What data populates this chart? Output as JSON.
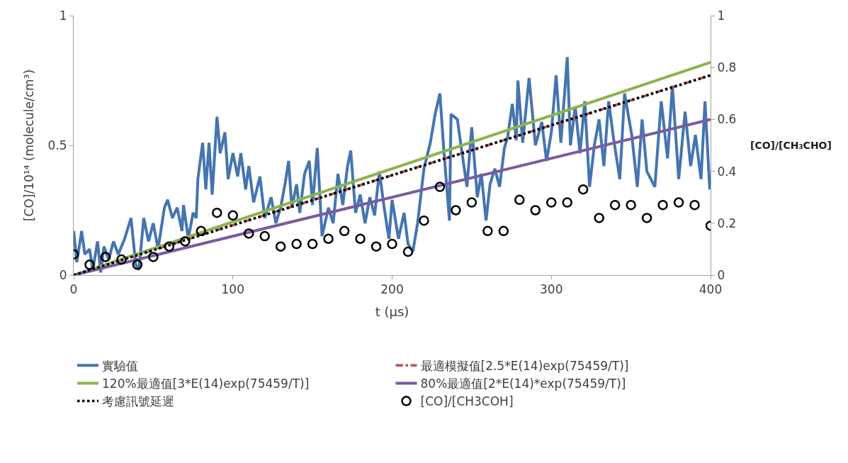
{
  "chart_data": {
    "type": "line",
    "xlabel": "t (μs)",
    "ylabel": "[CO]/10¹⁴ (molecule/cm³)",
    "y2label": "[CO]/[CH₃CHO]",
    "xlim": [
      0,
      400
    ],
    "xticks": [
      0,
      100,
      200,
      300,
      400
    ],
    "ylim": [
      0,
      1
    ],
    "yticks": [
      0,
      0.5,
      1
    ],
    "y2lim": [
      0,
      1
    ],
    "y2ticks": [
      0,
      0.2,
      0.4,
      0.6,
      0.8,
      1
    ],
    "legend": "bottom",
    "series": [
      {
        "name": "實驗值",
        "color": "#4575b0",
        "line_style": "solid",
        "x": [
          0,
          2,
          5,
          7,
          10,
          12,
          15,
          17,
          19,
          22,
          25,
          28,
          32,
          36,
          39,
          41,
          44,
          47,
          50,
          53,
          57,
          59,
          62,
          65,
          68,
          69,
          72,
          75,
          77,
          78,
          81,
          83,
          85,
          87,
          90,
          92,
          95,
          97,
          100,
          103,
          105,
          108,
          110,
          113,
          117,
          120,
          124,
          127,
          130,
          133,
          135,
          137,
          140,
          142,
          145,
          148,
          150,
          153,
          156,
          160,
          163,
          166,
          169,
          172,
          174,
          177,
          180,
          183,
          186,
          189,
          192,
          195,
          198,
          200,
          204,
          207.5,
          210,
          213,
          216,
          220,
          224,
          227,
          230,
          232.5,
          236,
          237,
          241,
          243,
          247,
          250,
          253.5,
          256,
          259,
          261.5,
          264.5,
          267.5,
          270.5,
          272.5,
          275.5,
          278,
          279,
          282,
          286,
          290,
          294,
          297,
          300,
          303,
          306,
          310,
          312,
          315,
          318,
          321,
          324,
          327,
          330,
          333,
          336,
          339,
          343,
          346,
          350.5,
          354,
          357,
          360,
          365,
          369,
          373,
          376,
          380,
          384,
          387.5,
          390.5,
          394,
          396.5,
          399.5
        ],
        "values": [
          0.17,
          0.05,
          0.17,
          0.08,
          0.1,
          0.02,
          0.13,
          0.01,
          0.11,
          0.06,
          0.13,
          0.08,
          0.14,
          0.22,
          0.04,
          0.02,
          0.22,
          0.13,
          0.2,
          0.1,
          0.26,
          0.29,
          0.22,
          0.26,
          0.17,
          0.27,
          0.14,
          0.24,
          0.22,
          0.37,
          0.51,
          0.33,
          0.51,
          0.31,
          0.61,
          0.47,
          0.55,
          0.37,
          0.47,
          0.38,
          0.47,
          0.33,
          0.42,
          0.28,
          0.38,
          0.22,
          0.3,
          0.2,
          0.26,
          0.36,
          0.44,
          0.26,
          0.35,
          0.24,
          0.39,
          0.44,
          0.27,
          0.49,
          0.15,
          0.26,
          0.2,
          0.39,
          0.27,
          0.42,
          0.48,
          0.24,
          0.31,
          0.2,
          0.3,
          0.23,
          0.4,
          0.26,
          0.14,
          0.29,
          0.14,
          0.24,
          0.12,
          0.09,
          0.2,
          0.41,
          0.51,
          0.62,
          0.7,
          0.48,
          0.21,
          0.62,
          0.6,
          0.51,
          0.34,
          0.57,
          0.3,
          0.39,
          0.21,
          0.35,
          0.41,
          0.34,
          0.49,
          0.53,
          0.66,
          0.52,
          0.75,
          0.51,
          0.76,
          0.5,
          0.59,
          0.44,
          0.55,
          0.77,
          0.51,
          0.84,
          0.5,
          0.65,
          0.47,
          0.67,
          0.34,
          0.5,
          0.6,
          0.42,
          0.67,
          0.53,
          0.37,
          0.7,
          0.54,
          0.34,
          0.6,
          0.4,
          0.34,
          0.67,
          0.45,
          0.73,
          0.37,
          0.63,
          0.42,
          0.54,
          0.37,
          0.67,
          0.33
        ]
      },
      {
        "name": "最適模擬值[2.5*E(14)exp(75459/T)]",
        "color": "#c0504d",
        "line_style": "dashed",
        "x": [
          0,
          400
        ],
        "values": [
          0,
          0.77
        ]
      },
      {
        "name": "120%最適值[3*E(14)exp(75459/T)]",
        "color": "#8cb44c",
        "line_style": "solid",
        "x": [
          0,
          400
        ],
        "values": [
          0,
          0.82
        ]
      },
      {
        "name": "80%最適值[2*E(14)*exp(75459/T)]",
        "color": "#7b5aa0",
        "line_style": "solid",
        "x": [
          0,
          400
        ],
        "values": [
          0,
          0.6
        ]
      },
      {
        "name": "考慮訊號延遲",
        "color": "#000000",
        "line_style": "dotted",
        "x": [
          0,
          400
        ],
        "values": [
          0,
          0.77
        ]
      },
      {
        "name": "[CO]/[CH3COH]",
        "type": "scatter",
        "color": "#000000",
        "marker": "circle",
        "axis": "y2",
        "x": [
          0,
          10,
          20,
          30,
          40,
          50,
          60,
          70,
          80,
          90,
          100,
          110,
          120,
          130,
          140,
          150,
          160,
          170,
          180,
          190,
          200,
          210,
          220,
          230,
          240,
          250,
          260,
          270,
          280,
          290,
          300,
          310,
          320,
          330,
          340,
          350,
          360,
          370,
          380,
          390,
          400
        ],
        "values": [
          0.08,
          0.04,
          0.07,
          0.06,
          0.04,
          0.07,
          0.11,
          0.13,
          0.17,
          0.24,
          0.23,
          0.16,
          0.15,
          0.11,
          0.12,
          0.12,
          0.14,
          0.17,
          0.14,
          0.11,
          0.12,
          0.09,
          0.21,
          0.34,
          0.25,
          0.28,
          0.17,
          0.17,
          0.29,
          0.25,
          0.28,
          0.28,
          0.33,
          0.22,
          0.27,
          0.27,
          0.22,
          0.27,
          0.28,
          0.27,
          0.19
        ]
      }
    ]
  }
}
